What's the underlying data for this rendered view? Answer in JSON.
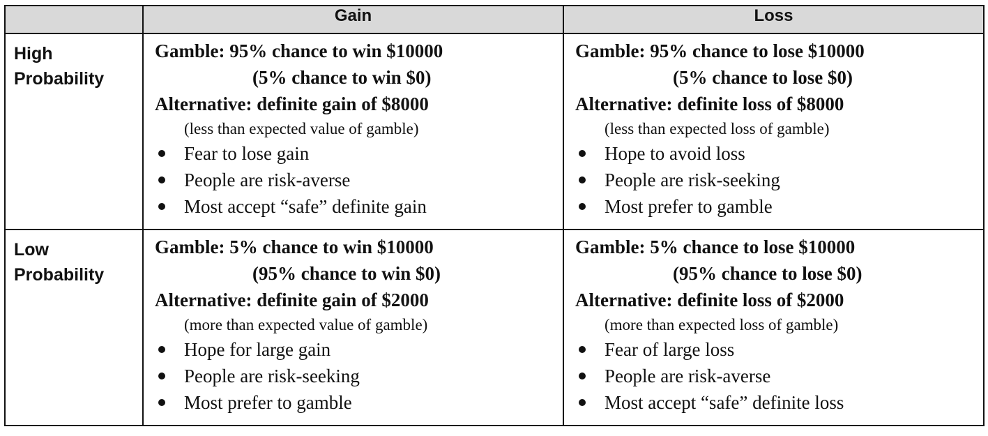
{
  "header": {
    "corner": "",
    "gain": "Gain",
    "loss": "Loss"
  },
  "rows": [
    {
      "label_line1": "High",
      "label_line2": "Probability",
      "gain": {
        "gamble_line1": "Gamble: 95% chance to win $10000",
        "gamble_line2": "(5% chance to win $0)",
        "alternative": "Alternative: definite gain of $8000",
        "note": "(less than expected value of gamble)",
        "bullets": [
          "Fear to lose gain",
          "People are risk-averse",
          "Most accept “safe” definite gain"
        ]
      },
      "loss": {
        "gamble_line1": "Gamble: 95% chance to lose $10000",
        "gamble_line2": "(5% chance to lose $0)",
        "alternative": "Alternative: definite loss of $8000",
        "note": "(less than expected loss of gamble)",
        "bullets": [
          "Hope to avoid loss",
          "People are risk-seeking",
          "Most prefer to gamble"
        ]
      }
    },
    {
      "label_line1": "Low",
      "label_line2": "Probability",
      "gain": {
        "gamble_line1": "Gamble: 5% chance to win $10000",
        "gamble_line2": "(95% chance to win $0)",
        "alternative": "Alternative: definite gain of $2000",
        "note": "(more than expected value of gamble)",
        "bullets": [
          "Hope for large gain",
          "People are risk-seeking",
          "Most prefer to gamble"
        ]
      },
      "loss": {
        "gamble_line1": "Gamble: 5% chance to lose $10000",
        "gamble_line2": "(95% chance to lose $0)",
        "alternative": "Alternative: definite loss of $2000",
        "note": "(more than expected loss of gamble)",
        "bullets": [
          "Fear of large loss",
          "People are risk-averse",
          "Most accept “safe” definite loss"
        ]
      }
    }
  ]
}
